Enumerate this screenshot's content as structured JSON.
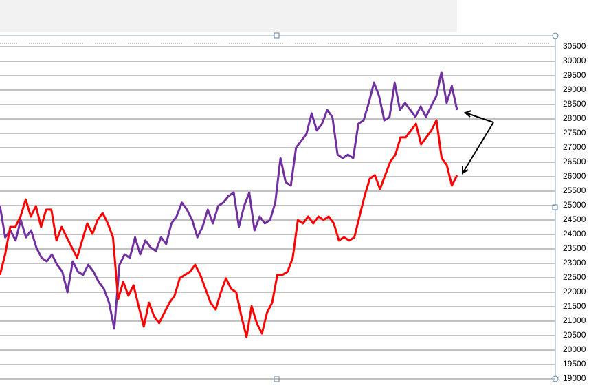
{
  "chart_data": {
    "type": "line",
    "ylim": [
      19000,
      30500
    ],
    "yticks": [
      19000,
      19500,
      20000,
      20500,
      21000,
      21500,
      22000,
      22500,
      23000,
      23500,
      24000,
      24500,
      25000,
      25500,
      26000,
      26500,
      27000,
      27500,
      28000,
      28500,
      29000,
      29500,
      30000,
      30500
    ],
    "grid": true,
    "series": [
      {
        "color": "#7030a0",
        "values": [
          24980,
          23900,
          24140,
          23790,
          24500,
          23900,
          24140,
          23550,
          23190,
          23070,
          23310,
          22950,
          22710,
          22000,
          23070,
          22710,
          22600,
          22950,
          22710,
          22360,
          22120,
          21640,
          20740,
          22950,
          23310,
          23190,
          23900,
          23310,
          23790,
          23550,
          23430,
          23900,
          23670,
          24380,
          24620,
          25100,
          24860,
          24500,
          23900,
          24260,
          24860,
          24380,
          24980,
          25100,
          25330,
          25450,
          24260,
          24980,
          25450,
          24140,
          24620,
          24380,
          24500,
          25100,
          26640,
          25810,
          25690,
          27000,
          27240,
          27480,
          28190,
          27600,
          27830,
          28310,
          28070,
          26760,
          26640,
          26760,
          26640,
          27830,
          27950,
          28550,
          29260,
          28790,
          27950,
          28070,
          29260,
          28310,
          28550,
          28310,
          28070,
          28430,
          28070,
          28430,
          28790,
          29620,
          28550,
          29140,
          28310
        ]
      },
      {
        "color": "#ff0000",
        "values": [
          22600,
          23310,
          24260,
          24260,
          24620,
          25210,
          24620,
          24980,
          24260,
          24860,
          24860,
          23790,
          24260,
          23900,
          23550,
          23190,
          23790,
          24380,
          24020,
          24500,
          24740,
          24380,
          23900,
          21760,
          22360,
          21880,
          22240,
          21520,
          20810,
          21640,
          21170,
          20930,
          21290,
          21640,
          21880,
          22480,
          22600,
          22710,
          22950,
          22600,
          22120,
          21640,
          21400,
          22000,
          22480,
          22120,
          22000,
          21170,
          20450,
          21520,
          20930,
          20570,
          21290,
          21640,
          22600,
          22600,
          22710,
          23190,
          24500,
          24380,
          24620,
          24380,
          24620,
          24500,
          24620,
          24380,
          23790,
          23900,
          23790,
          23900,
          24620,
          25330,
          25930,
          26050,
          25570,
          26050,
          26520,
          26760,
          27360,
          27360,
          27600,
          27830,
          27120,
          27360,
          27600,
          27950,
          26640,
          26400,
          25690,
          26050
        ]
      }
    ]
  }
}
